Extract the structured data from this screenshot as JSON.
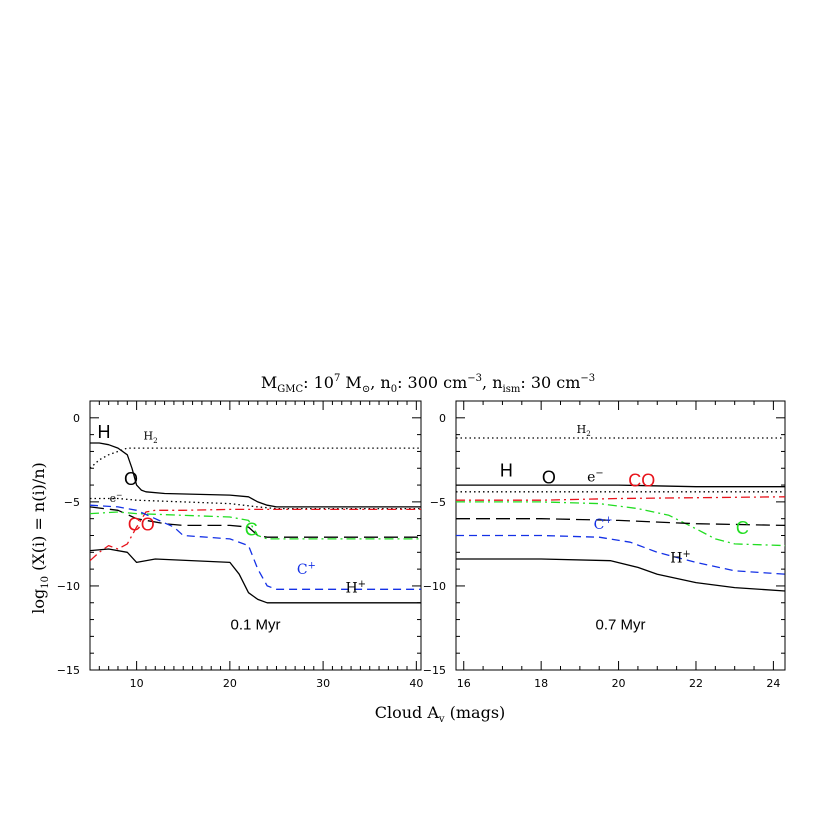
{
  "figure": {
    "title_parts": {
      "m": "M",
      "m_sub": "GMC",
      "m_val": ": 10",
      "m_exp": "7",
      "m_unit": " M",
      "m_unit_sub": "⊙",
      "n0": ", n",
      "n0_sub": "0",
      "n0_val": ": 300 cm",
      "n0_exp": "−3",
      "nism": ", n",
      "nism_sub": "ism",
      "nism_val": ": 30 cm",
      "nism_exp": "−3"
    },
    "xlabel_main": "Cloud A",
    "xlabel_sub": "v",
    "xlabel_tail": " (mags)",
    "ylabel_main": "log",
    "ylabel_sub": "10",
    "ylabel_tail": " (X(i)  = n(i)/n)"
  },
  "chart_data": [
    {
      "type": "line",
      "annotation": "0.1 Myr",
      "xlim": [
        5,
        40.5
      ],
      "ylim": [
        -15,
        1
      ],
      "xticks": [
        10,
        20,
        30,
        40
      ],
      "yticks": [
        0,
        -5,
        -10,
        -15
      ],
      "series": [
        {
          "name": "H2",
          "color": "#000000",
          "dash": "dotted",
          "x": [
            5,
            6,
            7,
            8,
            9,
            10,
            15,
            20,
            30,
            40.5
          ],
          "y": [
            -3.0,
            -2.5,
            -2.2,
            -2.0,
            -1.8,
            -1.8,
            -1.8,
            -1.8,
            -1.8,
            -1.8
          ]
        },
        {
          "name": "H",
          "color": "#000000",
          "dash": "solid",
          "x": [
            5,
            6,
            7,
            8,
            9,
            9.5,
            10,
            10.5,
            11,
            13,
            20,
            22,
            23,
            24,
            25,
            30,
            40.5
          ],
          "y": [
            -1.5,
            -1.5,
            -1.6,
            -1.8,
            -2.2,
            -3.0,
            -4.0,
            -4.3,
            -4.4,
            -4.5,
            -4.6,
            -4.7,
            -5.0,
            -5.2,
            -5.3,
            -5.3,
            -5.3
          ]
        },
        {
          "name": "e-",
          "color": "#000000",
          "dash": "dotted",
          "x": [
            5,
            8,
            10,
            15,
            20,
            23,
            25,
            30,
            40.5
          ],
          "y": [
            -4.8,
            -4.8,
            -4.9,
            -5.0,
            -5.1,
            -5.3,
            -5.4,
            -5.4,
            -5.4
          ]
        },
        {
          "name": "O",
          "color": "#000000",
          "dash": "longdash",
          "x": [
            5,
            8,
            10,
            13,
            15,
            20,
            22,
            23,
            24,
            30,
            40.5
          ],
          "y": [
            -5.3,
            -5.5,
            -6.0,
            -6.3,
            -6.4,
            -6.4,
            -6.5,
            -7.0,
            -7.1,
            -7.1,
            -7.1
          ]
        },
        {
          "name": "CO",
          "color": "#e8141c",
          "dash": "dashdot",
          "x": [
            5,
            6,
            7,
            8,
            9,
            10,
            11,
            12,
            15,
            20,
            25,
            40.5
          ],
          "y": [
            -8.5,
            -8.0,
            -7.6,
            -7.8,
            -7.5,
            -6.5,
            -5.6,
            -5.5,
            -5.5,
            -5.45,
            -5.45,
            -5.45
          ]
        },
        {
          "name": "C",
          "color": "#22dd22",
          "dash": "dashdot",
          "x": [
            5,
            8,
            10,
            15,
            20,
            22,
            23,
            24,
            30,
            40.5
          ],
          "y": [
            -5.7,
            -5.6,
            -5.7,
            -5.8,
            -5.9,
            -6.1,
            -7.0,
            -7.2,
            -7.2,
            -7.2
          ]
        },
        {
          "name": "C+",
          "color": "#1431e6",
          "dash": "dashed",
          "x": [
            5,
            8,
            10,
            12,
            14,
            15,
            20,
            22,
            23,
            24,
            25,
            40.5
          ],
          "y": [
            -5.2,
            -5.3,
            -5.5,
            -6.0,
            -6.5,
            -7.0,
            -7.2,
            -7.6,
            -9.0,
            -10.0,
            -10.2,
            -10.2
          ]
        },
        {
          "name": "H+",
          "color": "#000000",
          "dash": "solid",
          "x": [
            5,
            7,
            9,
            10,
            12,
            20,
            21,
            22,
            23,
            24,
            25,
            40.5
          ],
          "y": [
            -7.9,
            -7.8,
            -8.0,
            -8.6,
            -8.4,
            -8.6,
            -9.3,
            -10.4,
            -10.8,
            -11.0,
            -11.0,
            -11.0
          ]
        }
      ],
      "labels": [
        {
          "text": "H2",
          "base": "H",
          "sub": "2",
          "x": 11.5,
          "y": -1.3,
          "color": "#000000",
          "size": "small"
        },
        {
          "text": "H",
          "base": "H",
          "x": 6.5,
          "y": -1.2,
          "color": "#000000",
          "size": "large"
        },
        {
          "text": "O",
          "base": "O",
          "x": 9.4,
          "y": -4.0,
          "color": "#000000",
          "size": "large"
        },
        {
          "text": "e-",
          "base": "e",
          "sup": "−",
          "x": 7.8,
          "y": -5.0,
          "color": "#000000",
          "size": "small"
        },
        {
          "text": "CO",
          "base": "CO",
          "x": 10.5,
          "y": -6.7,
          "color": "#e8141c",
          "size": "large"
        },
        {
          "text": "C",
          "base": "C",
          "x": 22.3,
          "y": -7.0,
          "color": "#22dd22",
          "size": "large"
        },
        {
          "text": "C+",
          "base": "C",
          "sup": "+",
          "x": 28.2,
          "y": -9.3,
          "color": "#1431e6",
          "size": "medium"
        },
        {
          "text": "H+",
          "base": "H",
          "sup": "+",
          "x": 33.5,
          "y": -10.4,
          "color": "#000000",
          "size": "medium"
        }
      ]
    },
    {
      "type": "line",
      "annotation": "0.7 Myr",
      "xlim": [
        15.8,
        24.3
      ],
      "ylim": [
        -15,
        1
      ],
      "xticks": [
        16,
        18,
        20,
        22,
        24
      ],
      "yticks": [
        0,
        -5,
        -10,
        -15
      ],
      "series": [
        {
          "name": "H2",
          "color": "#000000",
          "dash": "dotted",
          "x": [
            15.8,
            24.3
          ],
          "y": [
            -1.2,
            -1.2
          ]
        },
        {
          "name": "H",
          "color": "#000000",
          "dash": "solid",
          "x": [
            15.8,
            18,
            20,
            22,
            24.3
          ],
          "y": [
            -4.0,
            -4.0,
            -4.0,
            -4.1,
            -4.1
          ]
        },
        {
          "name": "e-",
          "color": "#000000",
          "dash": "dotted",
          "x": [
            15.8,
            20,
            24.3
          ],
          "y": [
            -4.4,
            -4.4,
            -4.4
          ]
        },
        {
          "name": "CO",
          "color": "#e8141c",
          "dash": "dashdot",
          "x": [
            15.8,
            18,
            20,
            22,
            24.3
          ],
          "y": [
            -4.9,
            -4.9,
            -4.8,
            -4.75,
            -4.7
          ]
        },
        {
          "name": "C",
          "color": "#22dd22",
          "dash": "dashdot",
          "x": [
            15.8,
            18,
            19.5,
            20.5,
            21.3,
            22,
            22.5,
            23,
            24.3
          ],
          "y": [
            -5.0,
            -5.0,
            -5.1,
            -5.4,
            -5.8,
            -6.6,
            -7.2,
            -7.5,
            -7.6
          ]
        },
        {
          "name": "O",
          "color": "#000000",
          "dash": "longdash",
          "x": [
            15.8,
            18,
            20,
            22,
            24.3
          ],
          "y": [
            -6.0,
            -6.0,
            -6.1,
            -6.3,
            -6.4
          ]
        },
        {
          "name": "C+",
          "color": "#1431e6",
          "dash": "dashed",
          "x": [
            15.8,
            18,
            19.5,
            20.3,
            21,
            22,
            23,
            24.3
          ],
          "y": [
            -7.0,
            -7.0,
            -7.1,
            -7.4,
            -8.0,
            -8.6,
            -9.1,
            -9.3
          ]
        },
        {
          "name": "H+",
          "color": "#000000",
          "dash": "solid",
          "x": [
            15.8,
            18,
            19.8,
            20.5,
            21,
            22,
            23,
            24.3
          ],
          "y": [
            -8.4,
            -8.4,
            -8.5,
            -8.9,
            -9.3,
            -9.8,
            -10.1,
            -10.3
          ]
        }
      ],
      "labels": [
        {
          "text": "H2",
          "base": "H",
          "sub": "2",
          "x": 19.1,
          "y": -0.9,
          "color": "#000000",
          "size": "small"
        },
        {
          "text": "H",
          "base": "H",
          "x": 17.1,
          "y": -3.5,
          "color": "#000000",
          "size": "large"
        },
        {
          "text": "O",
          "base": "O",
          "x": 18.2,
          "y": -3.9,
          "color": "#000000",
          "size": "large"
        },
        {
          "text": "e-",
          "base": "e",
          "sup": "−",
          "x": 19.4,
          "y": -3.8,
          "color": "#000000",
          "size": "medium"
        },
        {
          "text": "CO",
          "base": "CO",
          "x": 20.6,
          "y": -4.1,
          "color": "#e8141c",
          "size": "large"
        },
        {
          "text": "C+",
          "base": "C",
          "sup": "+",
          "x": 19.6,
          "y": -6.6,
          "color": "#1431e6",
          "size": "medium"
        },
        {
          "text": "C",
          "base": "C",
          "x": 23.2,
          "y": -6.9,
          "color": "#22dd22",
          "size": "large"
        },
        {
          "text": "H+",
          "base": "H",
          "sup": "+",
          "x": 21.6,
          "y": -8.6,
          "color": "#000000",
          "size": "medium"
        }
      ]
    }
  ]
}
